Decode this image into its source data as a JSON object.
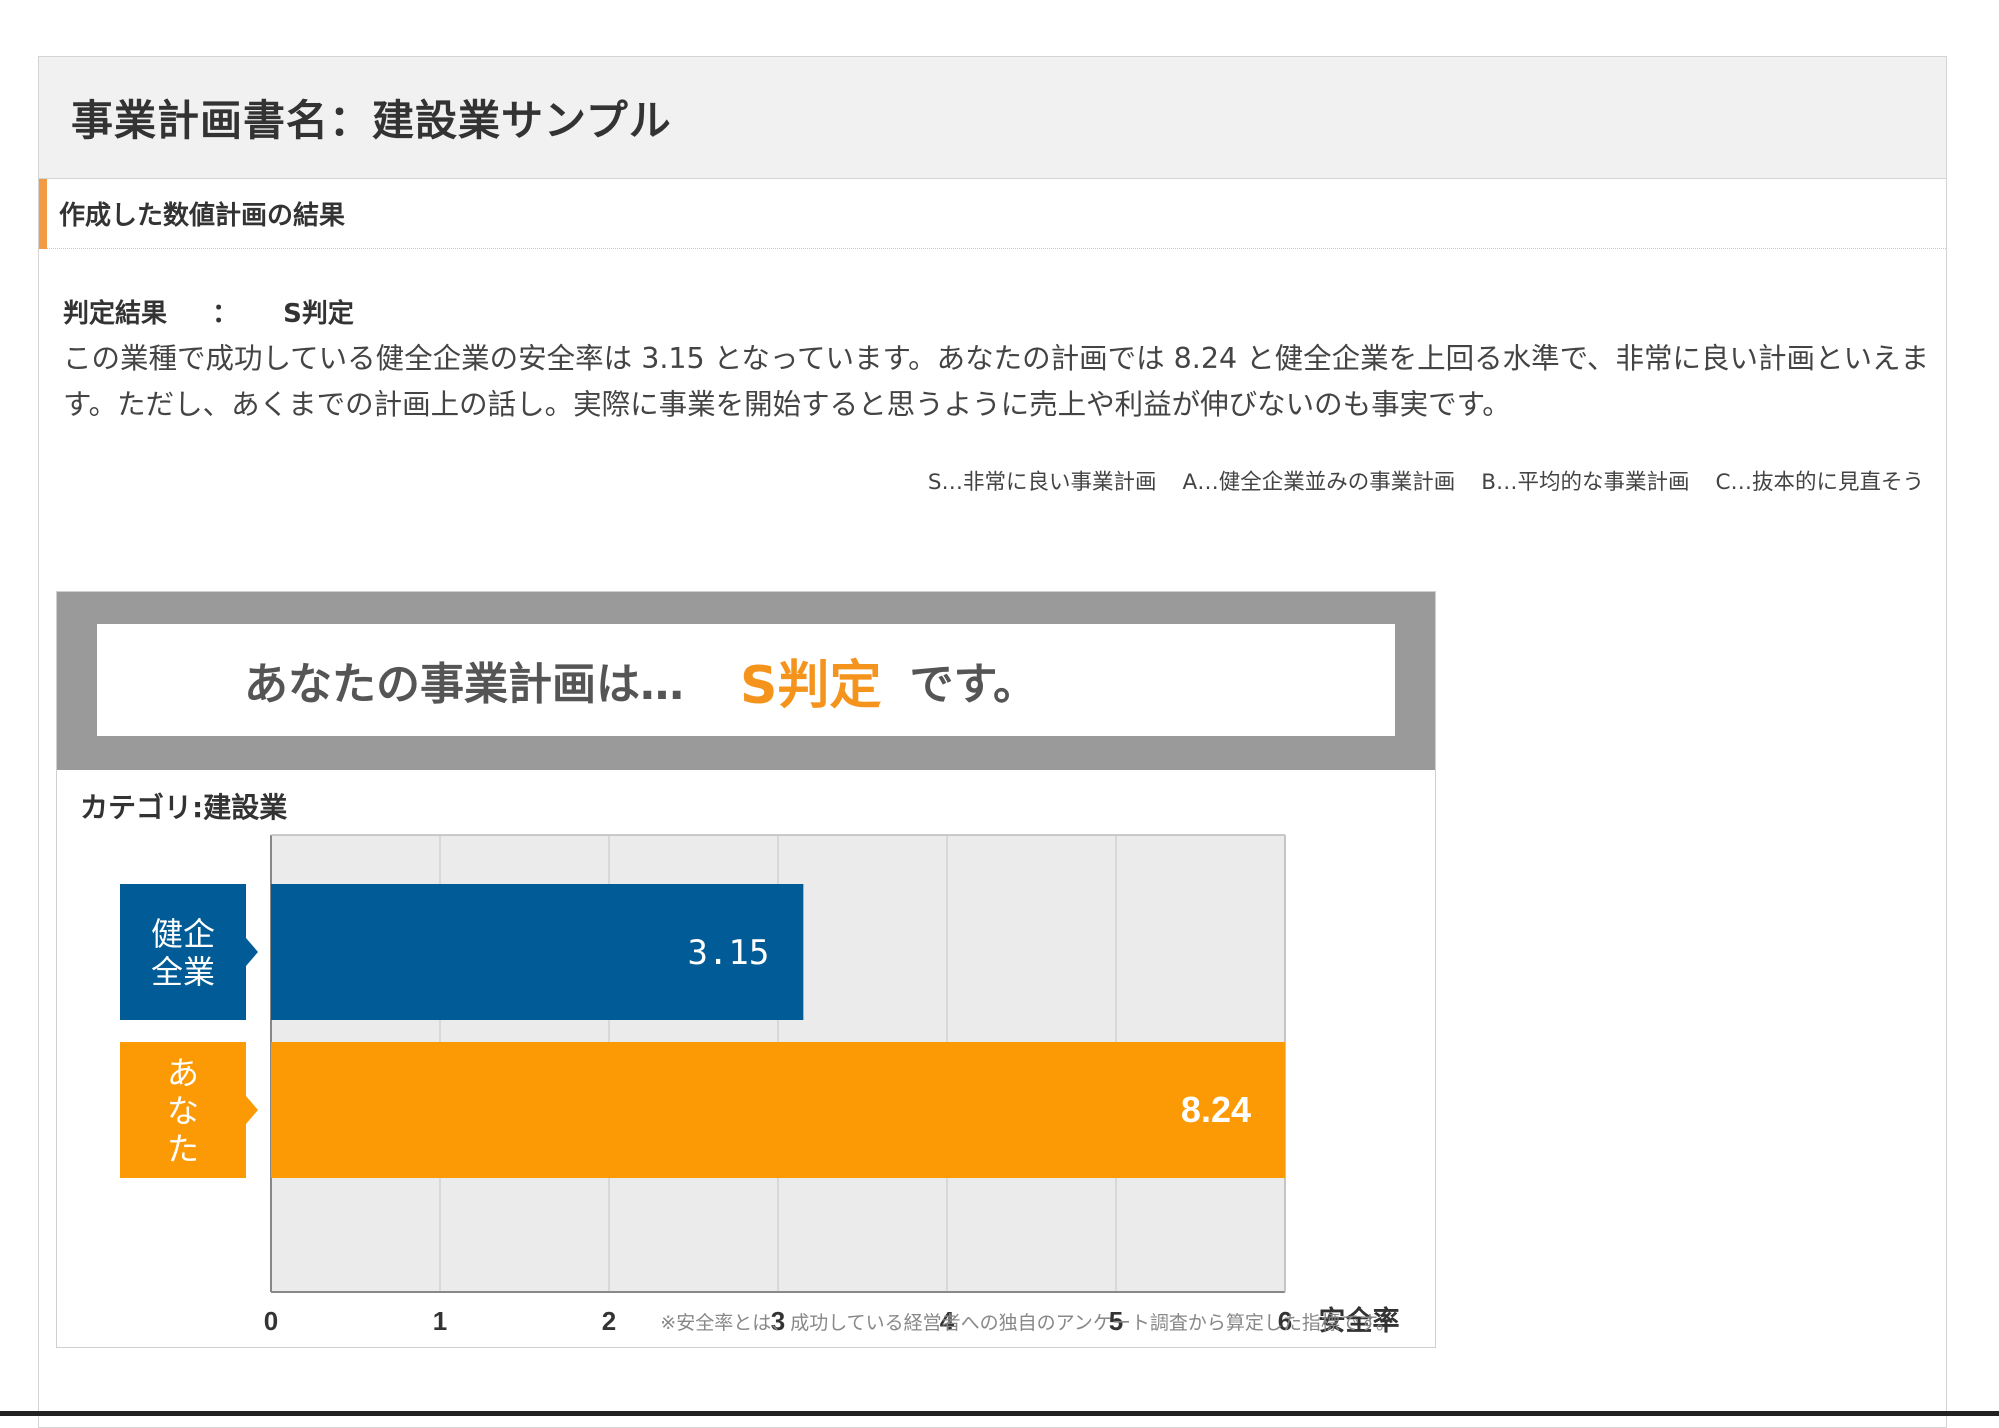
{
  "header": {
    "plan_title": "事業計画書名：建設業サンプル"
  },
  "section": {
    "title": "作成した数値計画の結果"
  },
  "result": {
    "label": "判定結果",
    "colon": "：",
    "rank": "S判定",
    "description": "この業種で成功している健全企業の安全率は 3.15 となっています。あなたの計画では 8.24 と健全企業を上回る水準で、非常に良い計画といえます。ただし、あくまでの計画上の話し。実際に事業を開始すると思うように売上や利益が伸びないのも事実です。"
  },
  "legend": [
    "S…非常に良い事業計画",
    "A…健全企業並みの事業計画",
    "B…平均的な事業計画",
    "C…抜本的に見直そう"
  ],
  "card": {
    "banner_lead": "あなたの事業計画は…",
    "banner_rank": "S判定",
    "banner_tail": "です。",
    "category": "カテゴリ:建設業",
    "footnote": "※安全率とは、成功している経営者への独自のアンケート調査から算定した指標です。"
  },
  "colors": {
    "accent": "#f39a44",
    "healthy_bar": "#005b96",
    "you_bar": "#fb9a05",
    "banner_rank": "#f5941d"
  },
  "chart_data": {
    "type": "bar",
    "orientation": "horizontal",
    "categories": [
      "健企全業",
      "あなた"
    ],
    "category_labels": [
      [
        "健企",
        "全業"
      ],
      [
        "あ",
        "な",
        "た"
      ]
    ],
    "values": [
      3.15,
      8.24
    ],
    "value_labels": [
      "3.15",
      "8.24"
    ],
    "xlim": [
      0,
      6
    ],
    "xticks": [
      "0",
      "1",
      "2",
      "3",
      "4",
      "5",
      "6"
    ],
    "xlabel": "安全率",
    "grid": true,
    "clipped_at_max": true
  }
}
